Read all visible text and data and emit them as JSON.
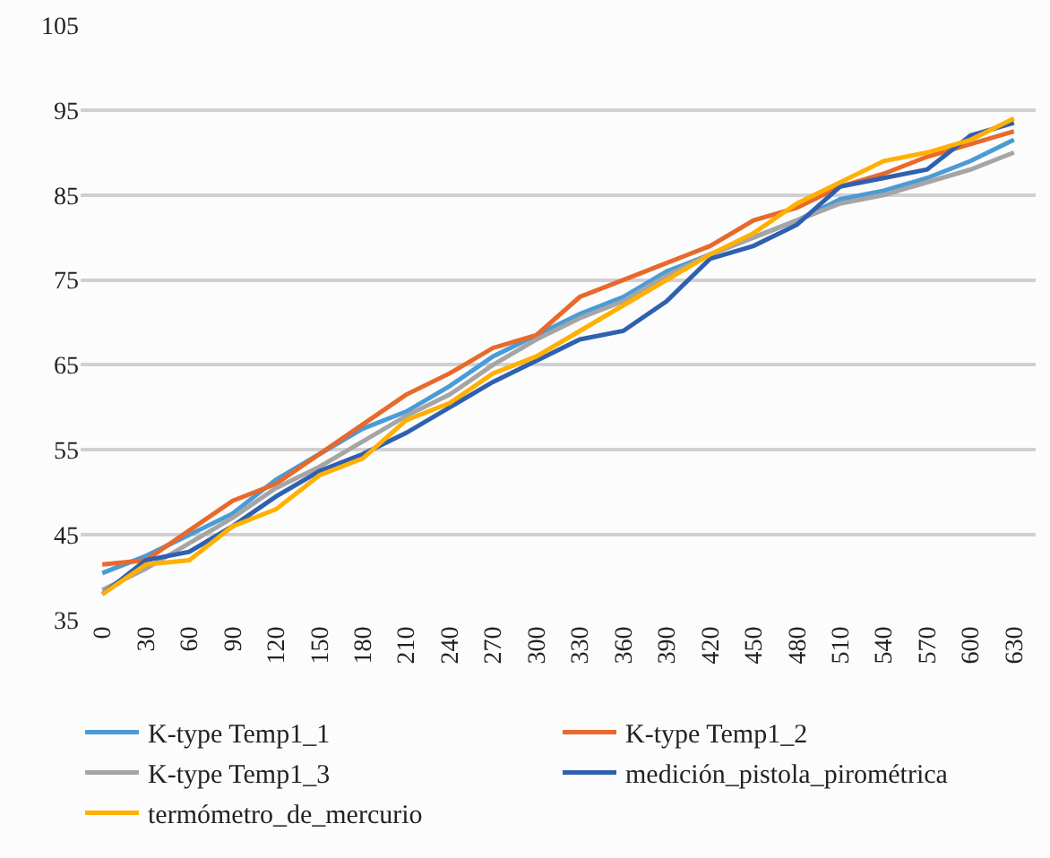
{
  "chart_data": {
    "type": "line",
    "categories": [
      "0",
      "30",
      "60",
      "90",
      "120",
      "150",
      "180",
      "210",
      "240",
      "270",
      "300",
      "330",
      "360",
      "390",
      "420",
      "450",
      "480",
      "510",
      "540",
      "570",
      "600",
      "630"
    ],
    "series": [
      {
        "name": "K-type Temp1_1",
        "color": "#4a9bd6",
        "values": [
          40.5,
          42.5,
          45,
          47.5,
          51.5,
          54.5,
          57.5,
          59.5,
          62.5,
          66,
          68.5,
          71,
          73,
          76,
          78,
          80,
          82,
          84.5,
          85.5,
          87,
          89,
          91.5
        ]
      },
      {
        "name": "K-type Temp1_2",
        "color": "#e8692c",
        "values": [
          41.5,
          42,
          45.5,
          49,
          51,
          54.5,
          58,
          61.5,
          64,
          67,
          68.5,
          73,
          75,
          77,
          79,
          82,
          83.5,
          86,
          87.5,
          89.5,
          91,
          92.5
        ]
      },
      {
        "name": "K-type Temp1_3",
        "color": "#a5a5a5",
        "values": [
          38.5,
          41,
          44,
          47,
          50.5,
          53,
          56,
          59,
          61.5,
          65,
          68,
          70.5,
          72.5,
          75.5,
          78,
          80,
          82,
          84,
          85,
          86.5,
          88,
          90
        ]
      },
      {
        "name": "medición_pistola_pirométrica",
        "color": "#2f60b0",
        "values": [
          38,
          42,
          43,
          46,
          49.5,
          52.5,
          54.5,
          57,
          60,
          63,
          65.5,
          68,
          69,
          72.5,
          77.5,
          79,
          81.5,
          86,
          87,
          88,
          92,
          93.5
        ]
      },
      {
        "name": "termómetro_de_mercurio",
        "color": "#ffb000",
        "values": [
          38,
          41.5,
          42,
          46,
          48,
          52,
          54,
          58.5,
          60.5,
          64,
          66,
          69,
          72,
          75,
          78,
          80.5,
          84,
          86.5,
          89,
          90,
          91.5,
          94
        ]
      }
    ],
    "ylim": [
      35,
      105
    ],
    "yticks": [
      35,
      45,
      55,
      65,
      75,
      85,
      95,
      105
    ],
    "grid": "y",
    "legend": "bottom",
    "marker": "none",
    "line_style": "solid"
  }
}
